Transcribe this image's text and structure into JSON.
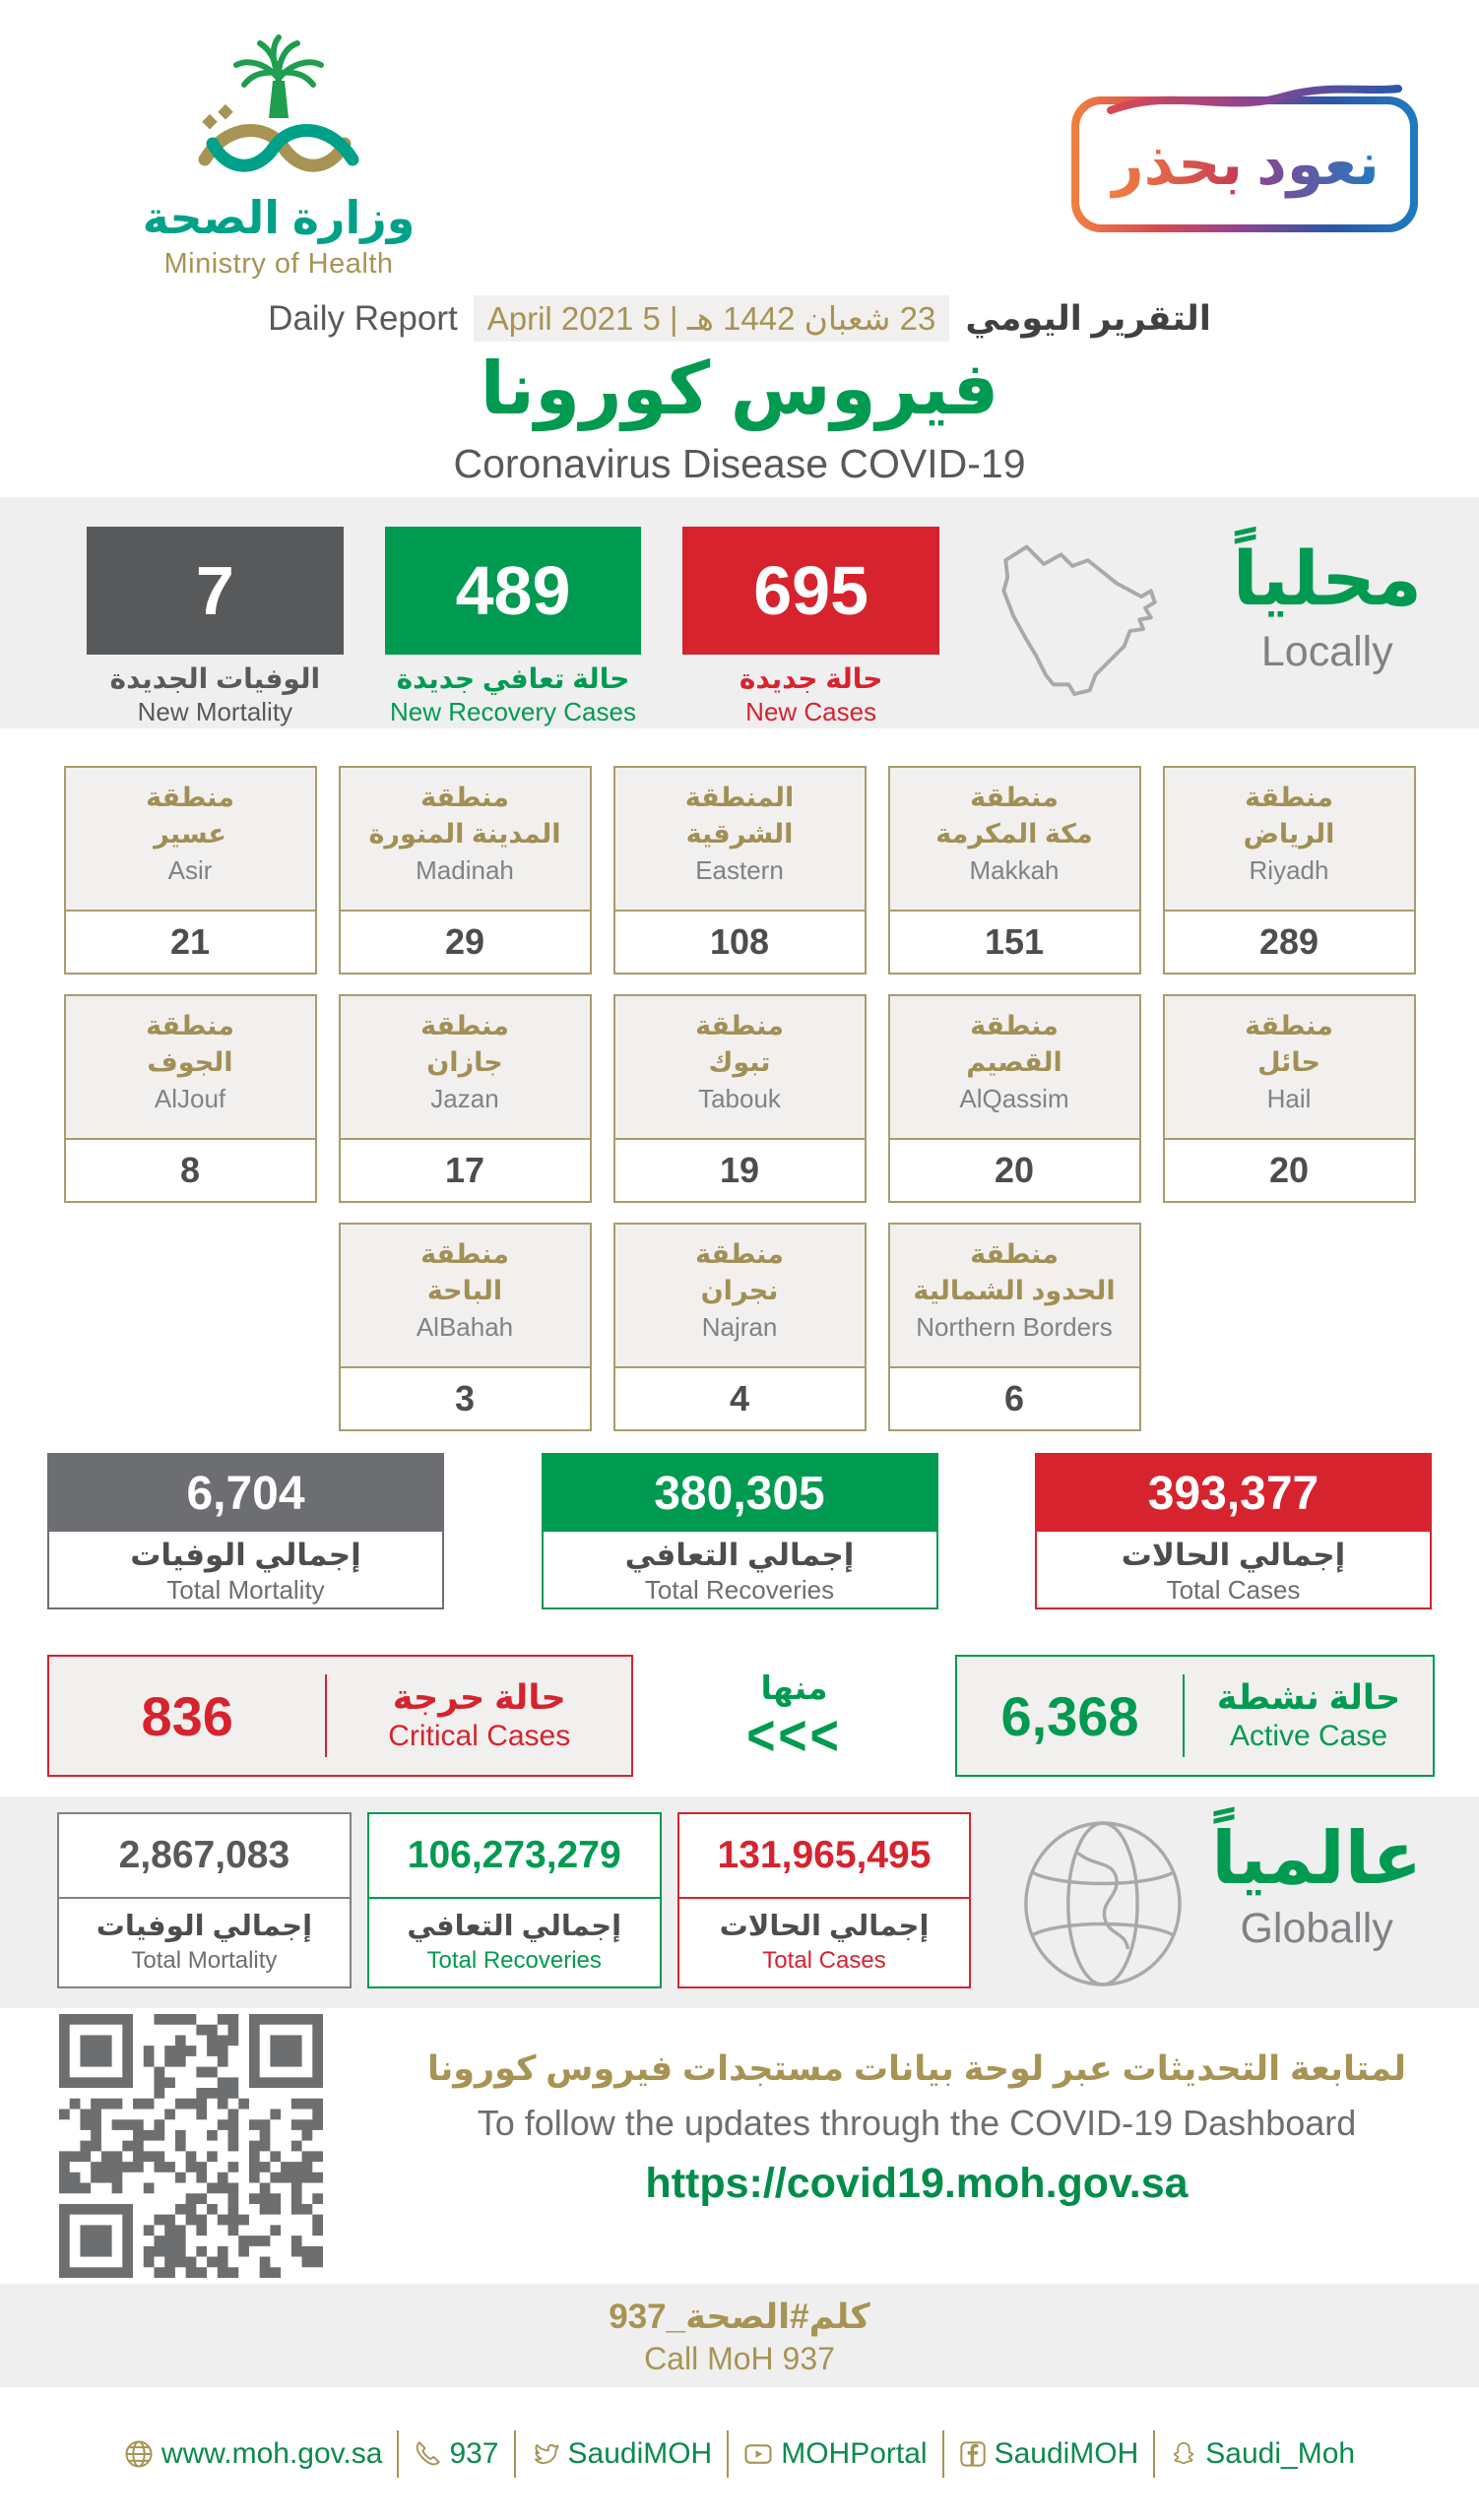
{
  "colors": {
    "green": "#009a50",
    "red": "#d6232e",
    "gray": "#58595b",
    "gold": "#a79454",
    "teal_logo": "#00a189",
    "band_bg": "#efefef"
  },
  "header": {
    "logo_ar": "وزارة الصحة",
    "logo_en": "Ministry of Health",
    "badge": {
      "word_right": "نعود",
      "word_left": "بحذر"
    },
    "report_label_en": "Daily Report",
    "date": "23 شعبان 1442 هـ | 5 April  2021",
    "report_label_ar": "التقرير اليومي",
    "title_ar": "فيروس كورونا",
    "title_en": "Coronavirus Disease COVID-19"
  },
  "locally": {
    "heading_ar": "محلياً",
    "heading_en": "Locally",
    "new_mortality": {
      "value": "7",
      "label_ar": "الوفيات الجديدة",
      "label_en": "New Mortality"
    },
    "new_recoveries": {
      "value": "489",
      "label_ar": "حالة تعافي جديدة",
      "label_en": "New Recovery Cases"
    },
    "new_cases": {
      "value": "695",
      "label_ar": "حالة جديدة",
      "label_en": "New Cases"
    }
  },
  "regions": [
    {
      "ar1": "منطقة",
      "ar2": "عسير",
      "en": "Asir",
      "value": "21"
    },
    {
      "ar1": "منطقة",
      "ar2": "المدينة المنورة",
      "en": "Madinah",
      "value": "29"
    },
    {
      "ar1": "المنطقة",
      "ar2": "الشرقية",
      "en": "Eastern",
      "value": "108"
    },
    {
      "ar1": "منطقة",
      "ar2": "مكة المكرمة",
      "en": "Makkah",
      "value": "151"
    },
    {
      "ar1": "منطقة",
      "ar2": "الرياض",
      "en": "Riyadh",
      "value": "289"
    },
    {
      "ar1": "منطقة",
      "ar2": "الجوف",
      "en": "AlJouf",
      "value": "8"
    },
    {
      "ar1": "منطقة",
      "ar2": "جازان",
      "en": "Jazan",
      "value": "17"
    },
    {
      "ar1": "منطقة",
      "ar2": "تبوك",
      "en": "Tabouk",
      "value": "19"
    },
    {
      "ar1": "منطقة",
      "ar2": "القصيم",
      "en": "AlQassim",
      "value": "20"
    },
    {
      "ar1": "منطقة",
      "ar2": "حائل",
      "en": "Hail",
      "value": "20"
    },
    {
      "ar1": "منطقة",
      "ar2": "الباحة",
      "en": "AlBahah",
      "value": "3"
    },
    {
      "ar1": "منطقة",
      "ar2": "نجران",
      "en": "Najran",
      "value": "4"
    },
    {
      "ar1": "منطقة",
      "ar2": "الحدود الشمالية",
      "en": "Northern Borders",
      "value": "6"
    }
  ],
  "totals": {
    "mortality": {
      "value": "6,704",
      "label_ar": "إجمالي الوفيات",
      "label_en": "Total Mortality"
    },
    "recoveries": {
      "value": "380,305",
      "label_ar": "إجمالي التعافي",
      "label_en": "Total Recoveries"
    },
    "cases": {
      "value": "393,377",
      "label_ar": "إجمالي الحالات",
      "label_en": "Total Cases"
    }
  },
  "breakdown": {
    "critical": {
      "value": "836",
      "label_ar": "حالة حرجة",
      "label_en": "Critical Cases"
    },
    "of_which": "منها",
    "arrows": "<<<",
    "active": {
      "value": "6,368",
      "label_ar": "حالة نشطة",
      "label_en": "Active Case"
    }
  },
  "globally": {
    "heading_ar": "عالمياً",
    "heading_en": "Globally",
    "mortality": {
      "value": "2,867,083",
      "label_ar": "إجمالي الوفيات",
      "label_en": "Total Mortality"
    },
    "recoveries": {
      "value": "106,273,279",
      "label_ar": "إجمالي التعافي",
      "label_en": "Total Recoveries"
    },
    "cases": {
      "value": "131,965,495",
      "label_ar": "إجمالي الحالات",
      "label_en": "Total Cases"
    }
  },
  "dashboard": {
    "text_ar": "لمتابعة التحديثات عبر لوحة بيانات مستجدات فيروس كورونا",
    "text_en": "To follow the updates through the COVID-19 Dashboard",
    "url": "https://covid19.moh.gov.sa"
  },
  "call": {
    "ar": "كلم#الصحة_937",
    "en": "Call MoH 937"
  },
  "footer": {
    "links": [
      {
        "icon": "globe-icon",
        "label": "www.moh.gov.sa"
      },
      {
        "icon": "phone-icon",
        "label": "937"
      },
      {
        "icon": "twitter-icon",
        "label": "SaudiMOH"
      },
      {
        "icon": "youtube-icon",
        "label": "MOHPortal"
      },
      {
        "icon": "facebook-icon",
        "label": "SaudiMOH"
      },
      {
        "icon": "snapchat-icon",
        "label": "Saudi_Moh"
      }
    ]
  }
}
